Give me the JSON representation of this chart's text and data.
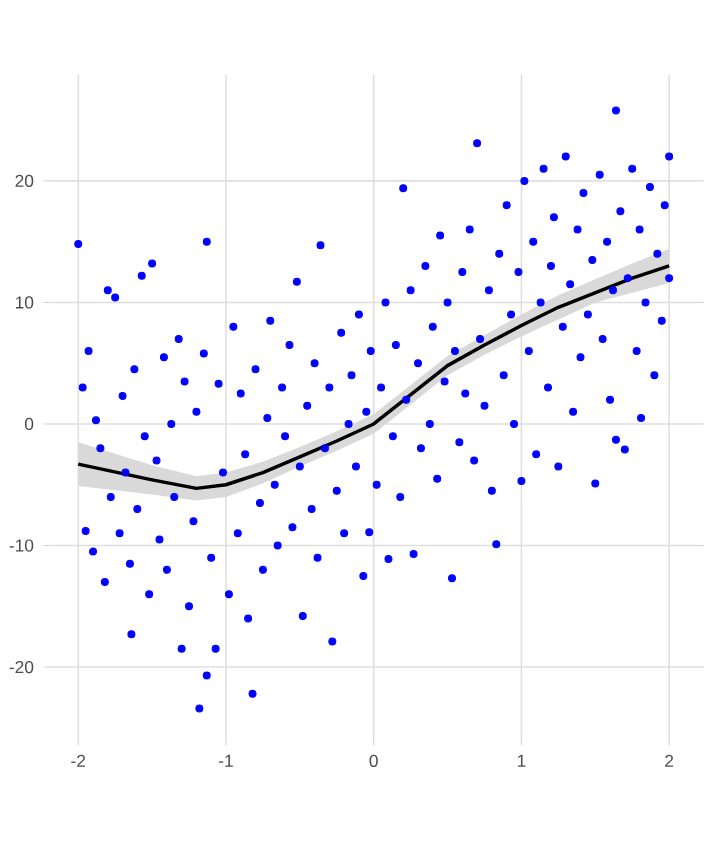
{
  "chart_data": {
    "type": "scatter",
    "xlim": [
      -2.2,
      2.2
    ],
    "ylim": [
      -26,
      28.3
    ],
    "xticks": [
      -2,
      -1,
      0,
      1,
      2
    ],
    "yticks": [
      -20,
      -10,
      0,
      10,
      20
    ],
    "grid": true,
    "marker": "circle",
    "series": [
      {
        "type": "scatter",
        "color": "#0000ff",
        "x": [
          -2,
          -1.97,
          -1.95,
          -1.93,
          -1.9,
          -1.88,
          -1.85,
          -1.82,
          -1.8,
          -1.78,
          -1.75,
          -1.72,
          -1.7,
          -1.68,
          -1.65,
          -1.64,
          -1.62,
          -1.6,
          -1.57,
          -1.55,
          -1.52,
          -1.5,
          -1.47,
          -1.45,
          -1.42,
          -1.4,
          -1.37,
          -1.35,
          -1.32,
          -1.3,
          -1.28,
          -1.25,
          -1.22,
          -1.2,
          -1.18,
          -1.15,
          -1.13,
          -1.13,
          -1.1,
          -1.07,
          -1.05,
          -1.02,
          -0.98,
          -0.95,
          -0.92,
          -0.9,
          -0.87,
          -0.85,
          -0.82,
          -0.8,
          -0.77,
          -0.75,
          -0.72,
          -0.7,
          -0.67,
          -0.65,
          -0.62,
          -0.6,
          -0.57,
          -0.55,
          -0.52,
          -0.5,
          -0.48,
          -0.45,
          -0.42,
          -0.4,
          -0.38,
          -0.36,
          -0.33,
          -0.3,
          -0.28,
          -0.25,
          -0.22,
          -0.2,
          -0.17,
          -0.15,
          -0.12,
          -0.1,
          -0.07,
          -0.05,
          -0.03,
          -0.02,
          0.02,
          0.05,
          0.08,
          0.1,
          0.13,
          0.15,
          0.18,
          0.2,
          0.22,
          0.25,
          0.27,
          0.3,
          0.32,
          0.35,
          0.38,
          0.4,
          0.43,
          0.45,
          0.48,
          0.5,
          0.53,
          0.55,
          0.58,
          0.6,
          0.62,
          0.65,
          0.68,
          0.7,
          0.72,
          0.75,
          0.78,
          0.8,
          0.83,
          0.85,
          0.88,
          0.9,
          0.93,
          0.95,
          0.98,
          1.0,
          1.02,
          1.05,
          1.08,
          1.1,
          1.13,
          1.15,
          1.18,
          1.2,
          1.22,
          1.25,
          1.28,
          1.3,
          1.33,
          1.35,
          1.38,
          1.4,
          1.42,
          1.45,
          1.48,
          1.5,
          1.53,
          1.55,
          1.58,
          1.6,
          1.62,
          1.64,
          1.64,
          1.67,
          1.7,
          1.72,
          1.75,
          1.78,
          1.8,
          1.81,
          1.84,
          1.87,
          1.9,
          1.92,
          1.95,
          1.97,
          2.0,
          2.0
        ],
        "values": [
          14.8,
          3,
          -8.8,
          6,
          -10.5,
          0.3,
          -2,
          -13,
          11,
          -6,
          10.4,
          -9,
          2.3,
          -4,
          -11.5,
          -17.3,
          4.5,
          -7,
          12.2,
          -1,
          -14,
          13.2,
          -3,
          -9.5,
          5.5,
          -12,
          0,
          -6,
          7,
          -18.5,
          3.5,
          -15,
          -8,
          1,
          -23.4,
          5.8,
          -20.7,
          15,
          -11,
          -18.5,
          3.3,
          -4,
          -14,
          8,
          -9,
          2.5,
          -2.5,
          -16,
          -22.2,
          4.5,
          -6.5,
          -12,
          0.5,
          8.5,
          -5,
          -10,
          3,
          -1,
          6.5,
          -8.5,
          11.7,
          -3.5,
          -15.8,
          1.5,
          -7,
          5,
          -11,
          14.7,
          -2,
          3,
          -17.9,
          -5.5,
          7.5,
          -9,
          0,
          4,
          -3.5,
          9,
          -12.5,
          1,
          -8.9,
          6,
          -5,
          3,
          10,
          -11.1,
          -1,
          6.5,
          -6,
          19.4,
          2,
          11,
          -10.7,
          5,
          -2,
          13,
          0,
          8,
          -4.5,
          15.5,
          3.5,
          10,
          -12.7,
          6,
          -1.5,
          12.5,
          2.5,
          16,
          -3,
          23.1,
          7,
          1.5,
          11,
          -5.5,
          -9.9,
          14,
          4,
          18,
          9,
          0,
          12.5,
          -4.7,
          20,
          6,
          15,
          -2.5,
          10,
          21,
          3,
          13,
          17,
          -3.5,
          8,
          22,
          11.5,
          1,
          16,
          5.5,
          19,
          9,
          13.5,
          -4.9,
          20.5,
          7,
          15,
          2,
          11,
          25.8,
          -1.3,
          17.5,
          -2.1,
          12,
          21,
          6,
          16,
          0.5,
          10,
          19.5,
          4,
          14,
          8.5,
          18,
          22,
          12
        ]
      },
      {
        "type": "line",
        "color": "#000000",
        "marker": "none",
        "x": [
          -2,
          -1.5,
          -1.2,
          -1,
          -0.75,
          -0.5,
          -0.25,
          0,
          0.25,
          0.5,
          0.75,
          1,
          1.25,
          1.5,
          1.75,
          2
        ],
        "values": [
          -3.3,
          -4.6,
          -5.3,
          -5.0,
          -4.0,
          -2.7,
          -1.4,
          0,
          2.4,
          4.8,
          6.5,
          8.1,
          9.6,
          10.8,
          12.0,
          13.0
        ],
        "lower": [
          -5.1,
          -5.8,
          -6.3,
          -6.0,
          -4.9,
          -3.5,
          -2.2,
          -0.8,
          1.6,
          4.0,
          5.7,
          7.2,
          8.6,
          10.0,
          10.8,
          11.6
        ],
        "upper": [
          -1.5,
          -3.4,
          -4.3,
          -4.0,
          -3.1,
          -1.9,
          -0.6,
          0.8,
          3.2,
          5.6,
          7.3,
          9.0,
          10.6,
          11.9,
          13.2,
          14.4
        ]
      }
    ]
  }
}
